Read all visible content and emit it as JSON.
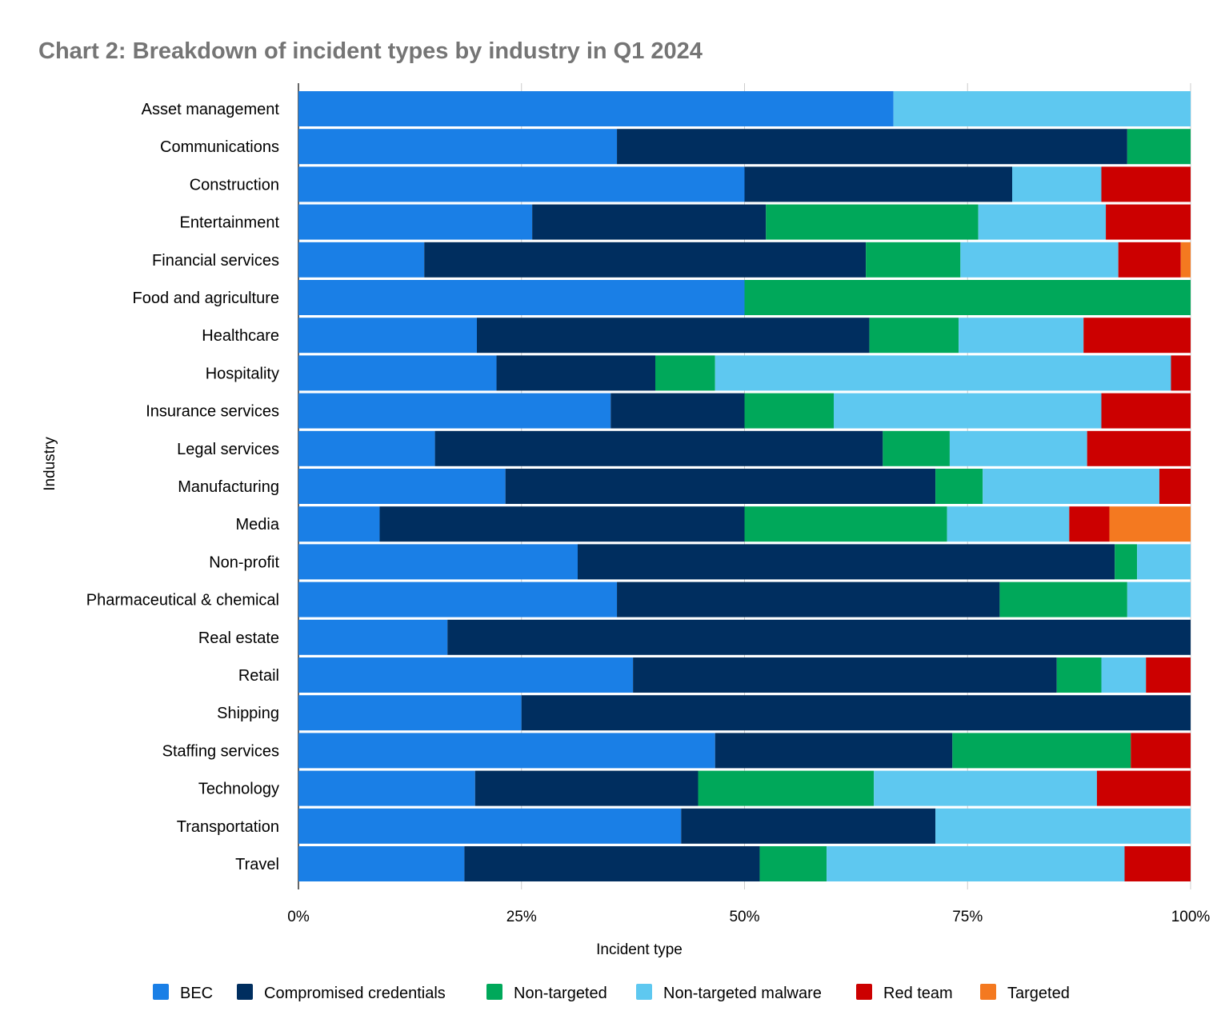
{
  "chart_data": {
    "type": "bar",
    "orientation": "horizontal",
    "stacked": "percent",
    "title": "Chart 2: Breakdown of incident types by industry in Q1 2024",
    "xlabel": "Incident type",
    "ylabel": "Industry",
    "xlim": [
      0,
      100
    ],
    "xticks": [
      "0%",
      "25%",
      "50%",
      "75%",
      "100%"
    ],
    "grid": true,
    "legend": "bottom",
    "categories": [
      "Asset management",
      "Communications",
      "Construction",
      "Entertainment",
      "Financial services",
      "Food and agriculture",
      "Healthcare",
      "Hospitality",
      "Insurance services",
      "Legal services",
      "Manufacturing",
      "Media",
      "Non-profit",
      "Pharmaceutical & chemical",
      "Real estate",
      "Retail",
      "Shipping",
      "Staffing services",
      "Technology",
      "Transportation",
      "Travel"
    ],
    "series": [
      {
        "name": "BEC",
        "color": "#1a7fe6",
        "values": [
          66.7,
          35.7,
          50,
          26.2,
          14.1,
          50,
          20,
          22.2,
          35,
          15.3,
          23.2,
          9.1,
          31.3,
          35.7,
          16.7,
          37.5,
          25,
          46.7,
          19.8,
          42.9,
          18.6
        ]
      },
      {
        "name": "Compromised credentials",
        "color": "#002e5f",
        "values": [
          0,
          57.2,
          30,
          26.2,
          49.5,
          0,
          44,
          17.8,
          15,
          50.2,
          48.2,
          40.9,
          60.2,
          42.9,
          83.3,
          47.5,
          75,
          26.6,
          25,
          28.5,
          33.1
        ]
      },
      {
        "name": "Non-targeted",
        "color": "#00a85a",
        "values": [
          0,
          7.1,
          0,
          23.8,
          10.6,
          50,
          10,
          6.7,
          10,
          7.5,
          5.3,
          22.7,
          2.5,
          14.3,
          0,
          5,
          0,
          20,
          19.7,
          0,
          7.5
        ]
      },
      {
        "name": "Non-targeted malware",
        "color": "#5ec8f0",
        "values": [
          33.3,
          0,
          10,
          14.3,
          17.7,
          0,
          14,
          51.1,
          30,
          15.4,
          19.8,
          13.7,
          6,
          7.1,
          0,
          5,
          0,
          0,
          25,
          28.6,
          33.4
        ]
      },
      {
        "name": "Red team",
        "color": "#cc0000",
        "values": [
          0,
          0,
          10,
          9.5,
          7,
          0,
          12,
          2.2,
          10,
          11.6,
          3.5,
          4.5,
          0,
          0,
          0,
          5,
          0,
          6.7,
          10.5,
          0,
          7.4
        ]
      },
      {
        "name": "Targeted",
        "color": "#f47920",
        "values": [
          0,
          0,
          0,
          0,
          1.1,
          0,
          0,
          0,
          0,
          0,
          0,
          9.1,
          0,
          0,
          0,
          0,
          0,
          0,
          0,
          0,
          0
        ]
      }
    ]
  }
}
